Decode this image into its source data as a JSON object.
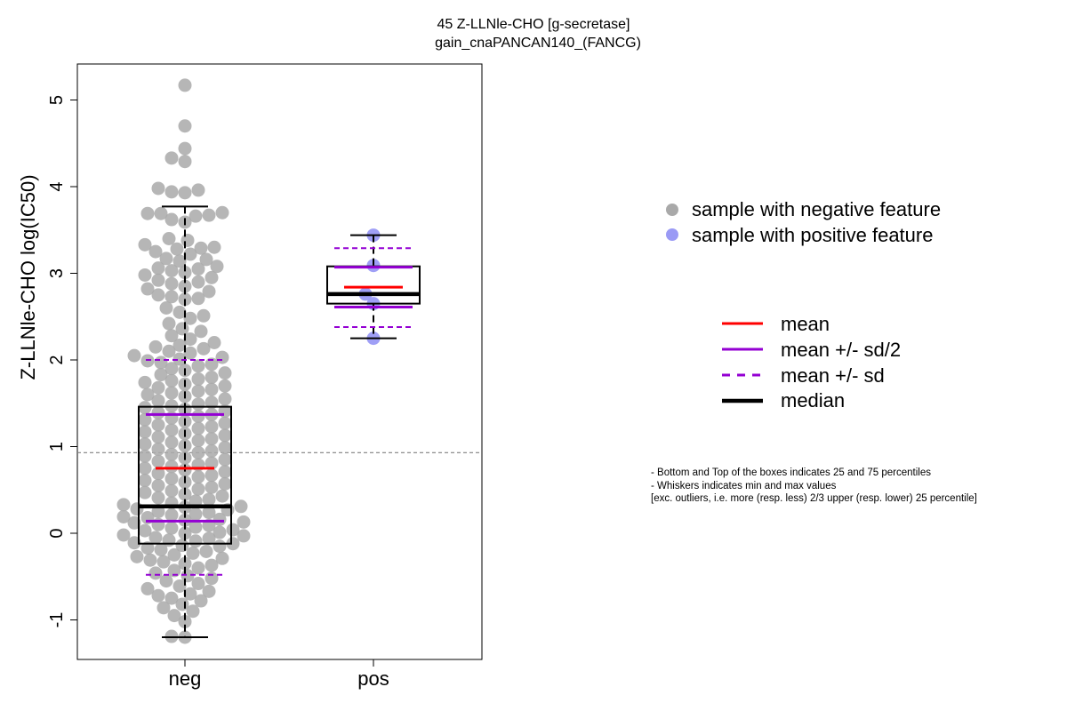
{
  "chart_data": {
    "type": "box-beeswarm",
    "title": "45 Z-LLNle-CHO [g-secretase]",
    "subtitle": "gain_cnaPANCAN140_(FANCG)",
    "xlabel": "",
    "ylabel": "Z-LLNle-CHO log(IC50)",
    "categories": [
      "neg",
      "pos"
    ],
    "y_ticks": [
      "-1",
      "0",
      "1",
      "2",
      "3",
      "4",
      "5"
    ],
    "ylim": [
      -1.45,
      5.4
    ],
    "grid": false,
    "reference_line": 0.93,
    "groups": [
      {
        "name": "neg",
        "box": {
          "q1": -0.12,
          "median": 0.31,
          "q3": 1.46,
          "whisker_low": -1.2,
          "whisker_high": 3.77
        },
        "mean": 0.75,
        "mean_minus_half_sd": 0.14,
        "mean_plus_half_sd": 1.37,
        "mean_minus_sd": -0.48,
        "mean_plus_sd": 2.0,
        "points": [
          5.17,
          4.7,
          4.44,
          4.33,
          4.29,
          3.98,
          3.96,
          3.94,
          3.93,
          3.7,
          3.69,
          3.69,
          3.67,
          3.66,
          3.62,
          3.59,
          3.4,
          3.38,
          3.33,
          3.3,
          3.29,
          3.28,
          3.25,
          3.22,
          3.17,
          3.16,
          3.14,
          3.08,
          3.06,
          3.05,
          3.03,
          3.01,
          2.98,
          2.95,
          2.92,
          2.9,
          2.88,
          2.85,
          2.82,
          2.79,
          2.75,
          2.73,
          2.71,
          2.7,
          2.6,
          2.55,
          2.51,
          2.48,
          2.42,
          2.36,
          2.33,
          2.28,
          2.24,
          2.2,
          2.17,
          2.15,
          2.13,
          2.1,
          2.08,
          2.05,
          2.03,
          2.01,
          1.99,
          1.97,
          1.95,
          1.93,
          1.9,
          1.88,
          1.85,
          1.83,
          1.8,
          1.78,
          1.76,
          1.74,
          1.72,
          1.7,
          1.68,
          1.66,
          1.64,
          1.62,
          1.6,
          1.58,
          1.55,
          1.53,
          1.51,
          1.49,
          1.47,
          1.45,
          1.43,
          1.41,
          1.39,
          1.37,
          1.35,
          1.33,
          1.31,
          1.29,
          1.27,
          1.25,
          1.23,
          1.21,
          1.19,
          1.17,
          1.15,
          1.13,
          1.11,
          1.09,
          1.07,
          1.05,
          1.03,
          1.01,
          0.99,
          0.97,
          0.95,
          0.93,
          0.91,
          0.89,
          0.87,
          0.85,
          0.83,
          0.81,
          0.79,
          0.77,
          0.75,
          0.73,
          0.71,
          0.69,
          0.67,
          0.65,
          0.63,
          0.61,
          0.59,
          0.57,
          0.55,
          0.53,
          0.51,
          0.49,
          0.47,
          0.45,
          0.43,
          0.41,
          0.39,
          0.37,
          0.35,
          0.33,
          0.31,
          0.3,
          0.28,
          0.27,
          0.25,
          0.24,
          0.22,
          0.21,
          0.19,
          0.18,
          0.16,
          0.15,
          0.13,
          0.12,
          0.1,
          0.09,
          0.07,
          0.06,
          0.04,
          0.03,
          0.01,
          0.0,
          -0.02,
          -0.03,
          -0.05,
          -0.06,
          -0.08,
          -0.09,
          -0.11,
          -0.12,
          -0.14,
          -0.15,
          -0.17,
          -0.19,
          -0.21,
          -0.23,
          -0.25,
          -0.27,
          -0.29,
          -0.31,
          -0.33,
          -0.35,
          -0.37,
          -0.4,
          -0.43,
          -0.46,
          -0.49,
          -0.52,
          -0.55,
          -0.58,
          -0.61,
          -0.64,
          -0.67,
          -0.7,
          -0.72,
          -0.75,
          -0.78,
          -0.82,
          -0.86,
          -0.9,
          -0.95,
          -1.02,
          -1.19,
          -1.2
        ]
      },
      {
        "name": "pos",
        "box": {
          "q1": 2.65,
          "median": 2.76,
          "q3": 3.08,
          "whisker_low": 2.25,
          "whisker_high": 3.44
        },
        "mean": 2.84,
        "mean_minus_half_sd": 2.61,
        "mean_plus_half_sd": 3.07,
        "mean_minus_sd": 2.38,
        "mean_plus_sd": 3.29,
        "points": [
          3.44,
          3.09,
          2.76,
          2.65,
          2.25
        ]
      }
    ],
    "legend": [
      {
        "label": "sample with negative feature",
        "color": "#a9a9a9",
        "kind": "point"
      },
      {
        "label": "sample with positive feature",
        "color": "#9a9af5",
        "kind": "point"
      },
      {
        "label": "mean",
        "color": "#ff0000",
        "kind": "line"
      },
      {
        "label": "mean +/- sd/2",
        "color": "#9400d3",
        "kind": "line"
      },
      {
        "label": "mean +/- sd",
        "color": "#9400d3",
        "kind": "dashed"
      },
      {
        "label": "median",
        "color": "#000000",
        "kind": "thick"
      }
    ],
    "notes": [
      "- Bottom and Top of the boxes indicates 25 and 75 percentiles",
      "- Whiskers indicates min and max values",
      "[exc. outliers, i.e. more (resp. less) 2/3 upper (resp. lower) 25 percentile]"
    ]
  }
}
